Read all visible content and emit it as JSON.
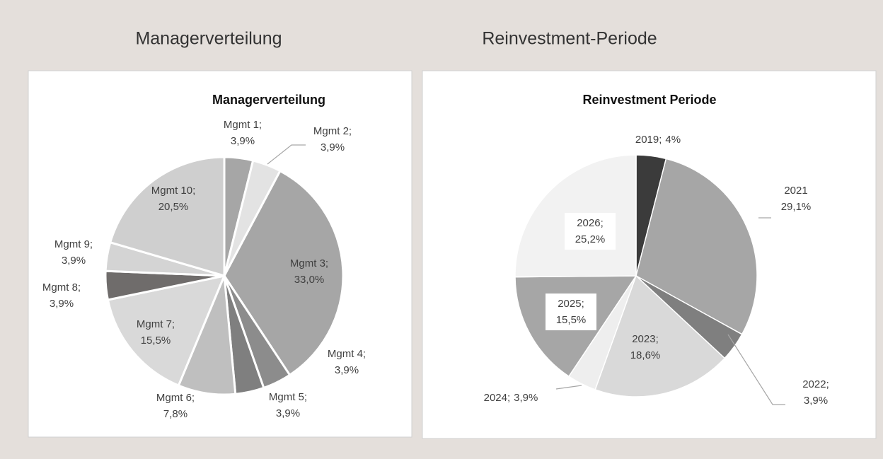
{
  "header": {
    "left": "Managerverteilung",
    "right": "Reinvestment-Periode"
  },
  "chart_data": [
    {
      "type": "pie",
      "title": "Managerverteilung",
      "categories": [
        "Mgmt 1;",
        "Mgmt 2;",
        "Mgmt 3;",
        "Mgmt 4;",
        "Mgmt 5;",
        "Mgmt 6;",
        "Mgmt 7;",
        "Mgmt 8;",
        "Mgmt 9;",
        "Mgmt 10;"
      ],
      "values": [
        3.9,
        3.9,
        33.0,
        3.9,
        3.9,
        7.8,
        15.5,
        3.9,
        3.9,
        20.5
      ],
      "value_labels": [
        "3,9%",
        "3,9%",
        "33,0%",
        "3,9%",
        "3,9%",
        "7,8%",
        "15,5%",
        "3,9%",
        "3,9%",
        "20,5%"
      ],
      "colors": [
        "#a6a6a6",
        "#e3e3e3",
        "#a6a6a6",
        "#8c8c8c",
        "#7f7f7f",
        "#bfbfbf",
        "#d9d9d9",
        "#6f6c6b",
        "#d4d4d4",
        "#cfcfcf"
      ]
    },
    {
      "type": "pie",
      "title": "Reinvestment Periode",
      "categories": [
        "2019;",
        "2021",
        "2022;",
        "2023;",
        "2024;",
        "2025;",
        "2026;"
      ],
      "values": [
        4,
        29.1,
        3.9,
        18.6,
        3.9,
        15.5,
        25.2
      ],
      "value_labels": [
        "4%",
        "29,1%",
        "3,9%",
        "18,6%",
        "3,9%",
        "15,5%",
        "25,2%"
      ],
      "colors": [
        "#3b3b3b",
        "#a6a6a6",
        "#7f7f7f",
        "#d9d9d9",
        "#eeeeee",
        "#a6a6a6",
        "#f2f2f2"
      ]
    }
  ]
}
